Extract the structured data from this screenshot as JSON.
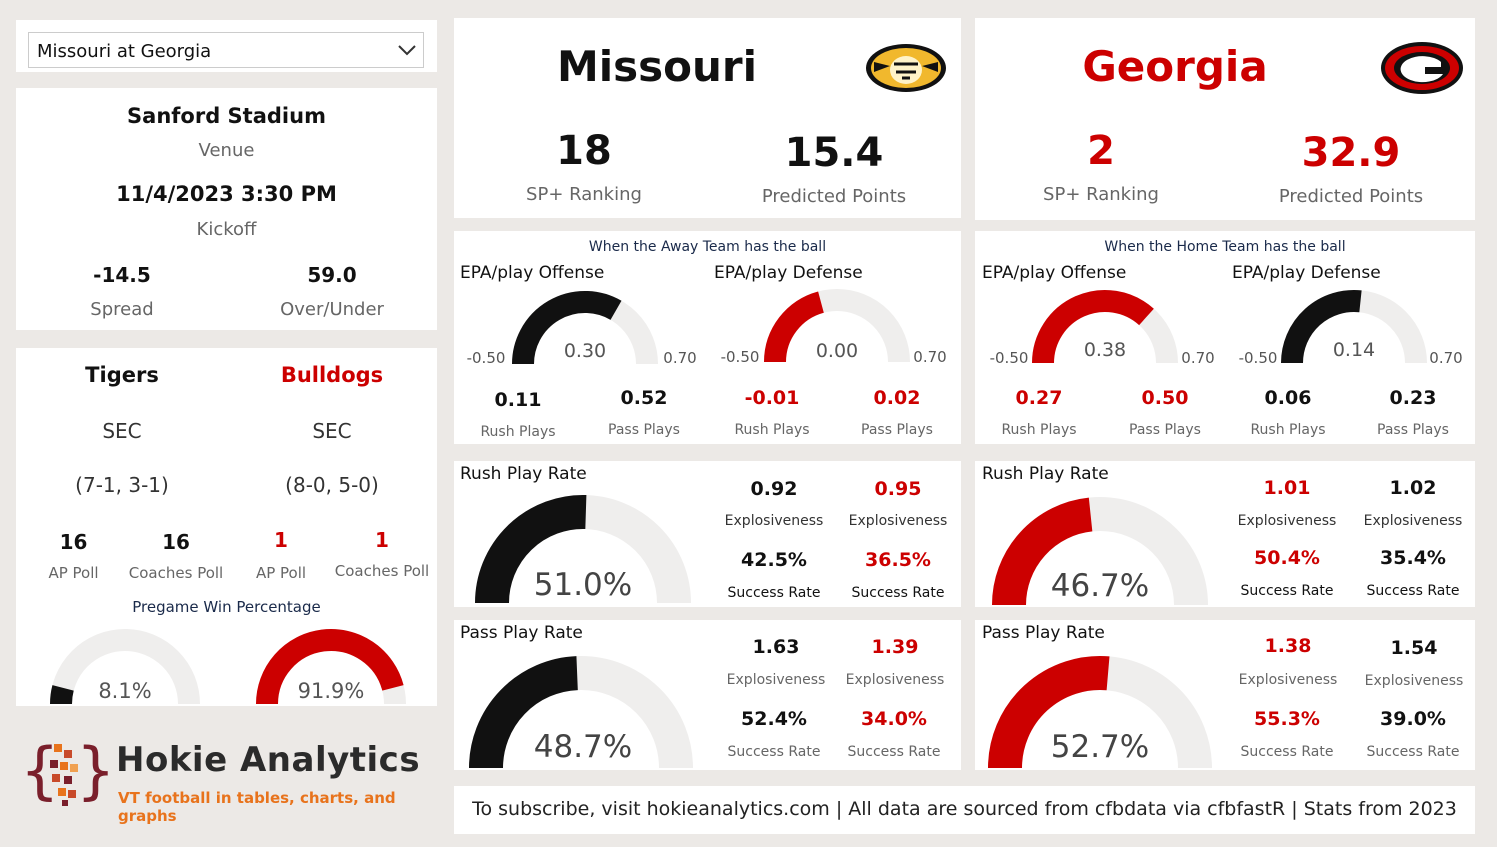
{
  "game_select": {
    "value": "Missouri at Georgia"
  },
  "venue": {
    "stadium": "Sanford Stadium",
    "venue_label": "Venue",
    "kickoff": "11/4/2023 3:30 PM",
    "kickoff_label": "Kickoff",
    "spread": "-14.5",
    "spread_label": "Spread",
    "over_under": "59.0",
    "over_under_label": "Over/Under"
  },
  "teams": {
    "away_mascot": "Tigers",
    "home_mascot": "Bulldogs",
    "away_conf": "SEC",
    "home_conf": "SEC",
    "away_record": "(7-1, 3-1)",
    "home_record": "(8-0, 5-0)",
    "polls": [
      {
        "value": "16",
        "label": "AP Poll"
      },
      {
        "value": "16",
        "label": "Coaches Poll"
      },
      {
        "value": "1",
        "label": "AP Poll"
      },
      {
        "value": "1",
        "label": "Coaches Poll"
      }
    ],
    "win_title": "Pregame Win Percentage",
    "away_win": "8.1%",
    "home_win": "91.9%",
    "away_win_value": 8.1,
    "home_win_value": 91.9
  },
  "brand": {
    "name": "Hokie Analytics",
    "tagline": "VT football in tables, charts, and graphs"
  },
  "away": {
    "name": "Missouri",
    "logo_icon": "missouri-tiger-logo",
    "sp_rank": "18",
    "sp_label": "SP+ Ranking",
    "pred_points": "15.4",
    "pred_label": "Predicted Points"
  },
  "home": {
    "name": "Georgia",
    "logo_icon": "georgia-g-logo",
    "sp_rank": "2",
    "sp_label": "SP+ Ranking",
    "pred_points": "32.9",
    "pred_label": "Predicted Points"
  },
  "epa_away": {
    "title": "When the Away Team has the ball",
    "offense_label": "EPA/play Offense",
    "defense_label": "EPA/play Defense",
    "offense_value": "0.30",
    "defense_value": "0.00",
    "offense_num": 0.3,
    "defense_num": 0.0,
    "min": "-0.50",
    "max": "0.70",
    "stats": [
      {
        "value": "0.11",
        "label": "Rush Plays"
      },
      {
        "value": "0.52",
        "label": "Pass Plays"
      },
      {
        "value": "-0.01",
        "label": "Rush Plays"
      },
      {
        "value": "0.02",
        "label": "Pass Plays"
      }
    ]
  },
  "epa_home": {
    "title": "When the Home Team has the ball",
    "offense_label": "EPA/play Offense",
    "defense_label": "EPA/play Defense",
    "offense_value": "0.38",
    "defense_value": "0.14",
    "offense_num": 0.38,
    "defense_num": 0.14,
    "min": "-0.50",
    "max": "0.70",
    "stats": [
      {
        "value": "0.27",
        "label": "Rush Plays"
      },
      {
        "value": "0.50",
        "label": "Pass Plays"
      },
      {
        "value": "0.06",
        "label": "Rush Plays"
      },
      {
        "value": "0.23",
        "label": "Pass Plays"
      }
    ]
  },
  "rush_away": {
    "title": "Rush Play Rate",
    "value": "51.0%",
    "value_num": 51.0,
    "stats": [
      {
        "value": "0.92",
        "label": "Explosiveness"
      },
      {
        "value": "0.95",
        "label": "Explosiveness"
      },
      {
        "value": "42.5%",
        "label": "Success Rate"
      },
      {
        "value": "36.5%",
        "label": "Success Rate"
      }
    ]
  },
  "rush_home": {
    "title": "Rush Play Rate",
    "value": "46.7%",
    "value_num": 46.7,
    "stats": [
      {
        "value": "1.01",
        "label": "Explosiveness"
      },
      {
        "value": "1.02",
        "label": "Explosiveness"
      },
      {
        "value": "50.4%",
        "label": "Success Rate"
      },
      {
        "value": "35.4%",
        "label": "Success Rate"
      }
    ]
  },
  "pass_away": {
    "title": "Pass Play Rate",
    "value": "48.7%",
    "value_num": 48.7,
    "stats": [
      {
        "value": "1.63",
        "label": "Explosiveness"
      },
      {
        "value": "1.39",
        "label": "Explosiveness"
      },
      {
        "value": "52.4%",
        "label": "Success Rate"
      },
      {
        "value": "34.0%",
        "label": "Success Rate"
      }
    ]
  },
  "pass_home": {
    "title": "Pass Play Rate",
    "value": "52.7%",
    "value_num": 52.7,
    "stats": [
      {
        "value": "1.38",
        "label": "Explosiveness"
      },
      {
        "value": "1.54",
        "label": "Explosiveness"
      },
      {
        "value": "55.3%",
        "label": "Success Rate"
      },
      {
        "value": "39.0%",
        "label": "Success Rate"
      }
    ]
  },
  "footer": {
    "text": "To subscribe, visit hokieanalytics.com | All data are sourced from cfbdata via cfbfastR | Stats from 2023"
  },
  "colors": {
    "red": "#cc0000",
    "black": "#111111",
    "track": "#efeeed",
    "brand_maroon": "#7a1f2b",
    "brand_orange": "#e8731c"
  }
}
